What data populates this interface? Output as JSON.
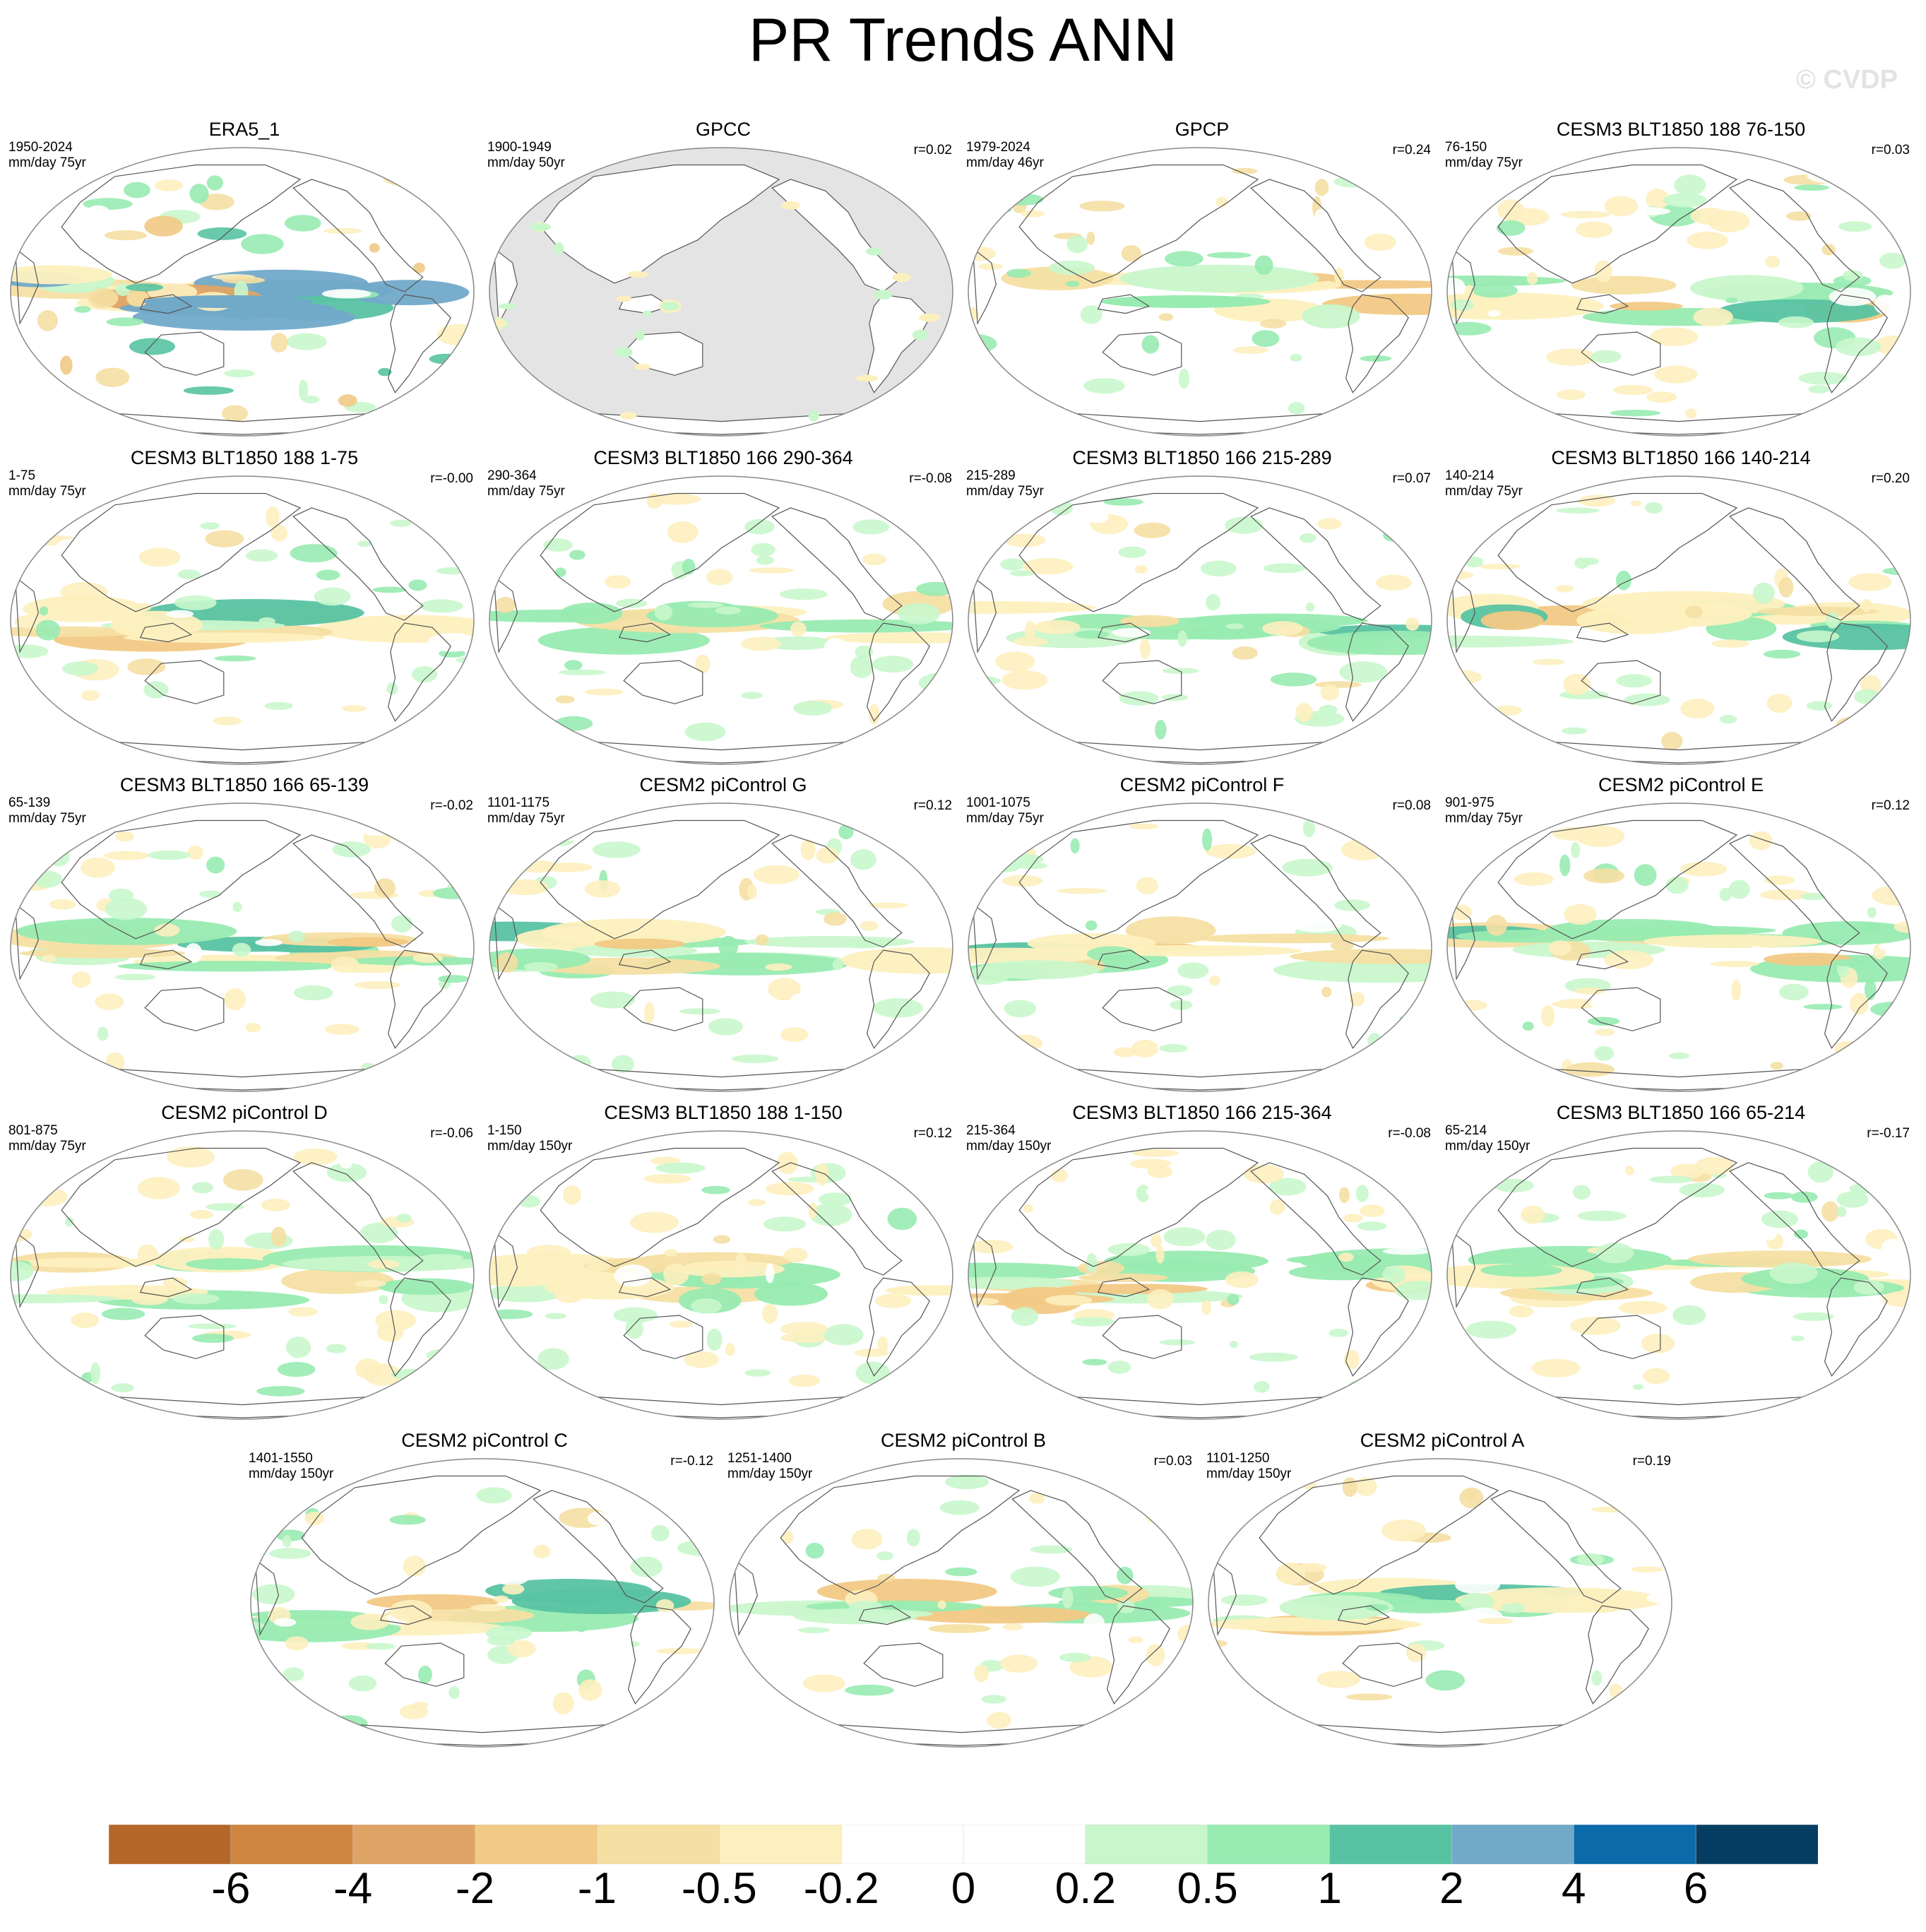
{
  "title": "PR Trends ANN",
  "watermark": "© CVDP",
  "colors": {
    "levels": [
      "#b5672a",
      "#cd853f",
      "#dfa365",
      "#f2c985",
      "#f5dfa3",
      "#fdf0bf",
      "#ffffff",
      "#ffffff",
      "#c9f7cc",
      "#98ebb1",
      "#58c3a2",
      "#71a9c9",
      "#0b6aa9",
      "#063e63"
    ],
    "land_mask": "#e4e4e4",
    "coast": "#555555"
  },
  "panels": [
    {
      "title": "ERA5_1",
      "years": "1950-2024",
      "units": "mm/day 75yr",
      "corr": "",
      "mask": false,
      "pattern": "era5"
    },
    {
      "title": "GPCC",
      "years": "1900-1949",
      "units": "mm/day 50yr",
      "corr": "r=0.02",
      "mask": true,
      "pattern": "gpcc"
    },
    {
      "title": "GPCP",
      "years": "1979-2024",
      "units": "mm/day 46yr",
      "corr": "r=0.24",
      "mask": false,
      "pattern": "gpcp"
    },
    {
      "title": "CESM3 BLT1850 188 76-150",
      "years": "76-150",
      "units": "mm/day 75yr",
      "corr": "r=0.03",
      "mask": false,
      "pattern": "m1"
    },
    {
      "title": "CESM3 BLT1850 188 1-75",
      "years": "1-75",
      "units": "mm/day 75yr",
      "corr": "r=-0.00",
      "mask": false,
      "pattern": "m2"
    },
    {
      "title": "CESM3 BLT1850 166 290-364",
      "years": "290-364",
      "units": "mm/day 75yr",
      "corr": "r=-0.08",
      "mask": false,
      "pattern": "m3"
    },
    {
      "title": "CESM3 BLT1850 166 215-289",
      "years": "215-289",
      "units": "mm/day 75yr",
      "corr": "r=0.07",
      "mask": false,
      "pattern": "m4"
    },
    {
      "title": "CESM3 BLT1850 166 140-214",
      "years": "140-214",
      "units": "mm/day 75yr",
      "corr": "r=0.20",
      "mask": false,
      "pattern": "m5"
    },
    {
      "title": "CESM3 BLT1850 166 65-139",
      "years": "65-139",
      "units": "mm/day 75yr",
      "corr": "r=-0.02",
      "mask": false,
      "pattern": "m6"
    },
    {
      "title": "CESM2 piControl G",
      "years": "1101-1175",
      "units": "mm/day 75yr",
      "corr": "r=0.12",
      "mask": false,
      "pattern": "m7"
    },
    {
      "title": "CESM2 piControl F",
      "years": "1001-1075",
      "units": "mm/day 75yr",
      "corr": "r=0.08",
      "mask": false,
      "pattern": "m8"
    },
    {
      "title": "CESM2 piControl E",
      "years": "901-975",
      "units": "mm/day 75yr",
      "corr": "r=0.12",
      "mask": false,
      "pattern": "m9"
    },
    {
      "title": "CESM2 piControl D",
      "years": "801-875",
      "units": "mm/day 75yr",
      "corr": "r=-0.06",
      "mask": false,
      "pattern": "m10"
    },
    {
      "title": "CESM3 BLT1850 188 1-150",
      "years": "1-150",
      "units": "mm/day 150yr",
      "corr": "r=0.12",
      "mask": false,
      "pattern": "m11"
    },
    {
      "title": "CESM3 BLT1850 166 215-364",
      "years": "215-364",
      "units": "mm/day 150yr",
      "corr": "r=-0.08",
      "mask": false,
      "pattern": "m12"
    },
    {
      "title": "CESM3 BLT1850 166 65-214",
      "years": "65-214",
      "units": "mm/day 150yr",
      "corr": "r=-0.17",
      "mask": false,
      "pattern": "m13"
    },
    {
      "title": "CESM2 piControl C",
      "years": "1401-1550",
      "units": "mm/day 150yr",
      "corr": "r=-0.12",
      "mask": false,
      "pattern": "m14"
    },
    {
      "title": "CESM2 piControl B",
      "years": "1251-1400",
      "units": "mm/day 150yr",
      "corr": "r=0.03",
      "mask": false,
      "pattern": "m15"
    },
    {
      "title": "CESM2 piControl A",
      "years": "1101-1250",
      "units": "mm/day 150yr",
      "corr": "r=0.19",
      "mask": false,
      "pattern": "m16"
    }
  ],
  "chart_data": {
    "type": "heatmap",
    "title": "PR Trends ANN",
    "variable": "Precipitation trend",
    "units": "mm/day",
    "colorbar": {
      "levels": [
        -6,
        -4,
        -2,
        -1,
        -0.5,
        -0.2,
        0,
        0.2,
        0.5,
        1,
        2,
        4,
        6
      ],
      "tick_labels": [
        "-6",
        "-4",
        "-2",
        "-1",
        "-0.5",
        "-0.2",
        "0",
        "0.2",
        "0.5",
        "1",
        "2",
        "4",
        "6"
      ],
      "orientation": "horizontal",
      "position": "bottom"
    },
    "panels": [
      {
        "name": "ERA5_1",
        "period": "1950-2024",
        "trend_span": "75yr",
        "pattern_correlation": null
      },
      {
        "name": "GPCC",
        "period": "1900-1949",
        "trend_span": "50yr",
        "pattern_correlation": 0.02
      },
      {
        "name": "GPCP",
        "period": "1979-2024",
        "trend_span": "46yr",
        "pattern_correlation": 0.24
      },
      {
        "name": "CESM3 BLT1850 188 76-150",
        "period": "76-150",
        "trend_span": "75yr",
        "pattern_correlation": 0.03
      },
      {
        "name": "CESM3 BLT1850 188 1-75",
        "period": "1-75",
        "trend_span": "75yr",
        "pattern_correlation": -0.0
      },
      {
        "name": "CESM3 BLT1850 166 290-364",
        "period": "290-364",
        "trend_span": "75yr",
        "pattern_correlation": -0.08
      },
      {
        "name": "CESM3 BLT1850 166 215-289",
        "period": "215-289",
        "trend_span": "75yr",
        "pattern_correlation": 0.07
      },
      {
        "name": "CESM3 BLT1850 166 140-214",
        "period": "140-214",
        "trend_span": "75yr",
        "pattern_correlation": 0.2
      },
      {
        "name": "CESM3 BLT1850 166 65-139",
        "period": "65-139",
        "trend_span": "75yr",
        "pattern_correlation": -0.02
      },
      {
        "name": "CESM2 piControl G",
        "period": "1101-1175",
        "trend_span": "75yr",
        "pattern_correlation": 0.12
      },
      {
        "name": "CESM2 piControl F",
        "period": "1001-1075",
        "trend_span": "75yr",
        "pattern_correlation": 0.08
      },
      {
        "name": "CESM2 piControl E",
        "period": "901-975",
        "trend_span": "75yr",
        "pattern_correlation": 0.12
      },
      {
        "name": "CESM2 piControl D",
        "period": "801-875",
        "trend_span": "75yr",
        "pattern_correlation": -0.06
      },
      {
        "name": "CESM3 BLT1850 188 1-150",
        "period": "1-150",
        "trend_span": "150yr",
        "pattern_correlation": 0.12
      },
      {
        "name": "CESM3 BLT1850 166 215-364",
        "period": "215-364",
        "trend_span": "150yr",
        "pattern_correlation": -0.08
      },
      {
        "name": "CESM3 BLT1850 166 65-214",
        "period": "65-214",
        "trend_span": "150yr",
        "pattern_correlation": -0.17
      },
      {
        "name": "CESM2 piControl C",
        "period": "1401-1550",
        "trend_span": "150yr",
        "pattern_correlation": -0.12
      },
      {
        "name": "CESM2 piControl B",
        "period": "1251-1400",
        "trend_span": "150yr",
        "pattern_correlation": 0.03
      },
      {
        "name": "CESM2 piControl A",
        "period": "1101-1250",
        "trend_span": "150yr",
        "pattern_correlation": 0.19
      }
    ]
  }
}
